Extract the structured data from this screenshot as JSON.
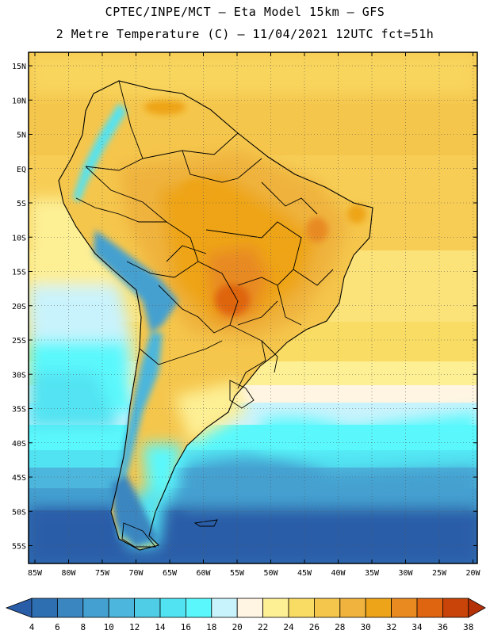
{
  "header": {
    "line1": "CPTEC/INPE/MCT –  Eta Model 15km – GFS",
    "line2": "2 Metre Temperature (C) – 11/04/2021 12UTC fct=51h"
  },
  "map": {
    "lat_labels": [
      "15N",
      "10N",
      "5N",
      "EQ",
      "5S",
      "10S",
      "15S",
      "20S",
      "25S",
      "30S",
      "35S",
      "40S",
      "45S",
      "50S",
      "55S"
    ],
    "lon_labels": [
      "85W",
      "80W",
      "75W",
      "70W",
      "65W",
      "60W",
      "55W",
      "50W",
      "45W",
      "40W",
      "35W",
      "30W",
      "25W",
      "20W"
    ],
    "lat_values": [
      15,
      10,
      5,
      0,
      -5,
      -10,
      -15,
      -20,
      -25,
      -30,
      -35,
      -40,
      -45,
      -50,
      -55
    ],
    "lon_values": [
      -85,
      -80,
      -75,
      -70,
      -65,
      -60,
      -55,
      -50,
      -45,
      -40,
      -35,
      -30,
      -25,
      -20
    ]
  },
  "colorbar": {
    "labels": [
      "4",
      "6",
      "8",
      "10",
      "12",
      "14",
      "16",
      "18",
      "20",
      "22",
      "24",
      "26",
      "28",
      "30",
      "32",
      "34",
      "36",
      "38"
    ],
    "colors": [
      "#2a5da8",
      "#2e6fb2",
      "#3a86c0",
      "#44a0d0",
      "#4cb6dc",
      "#50cde6",
      "#52e3f2",
      "#5af8fc",
      "#c9f3fc",
      "#fff5e2",
      "#fdef94",
      "#f9dc64",
      "#f5c64c",
      "#efb33e",
      "#eea418",
      "#e88a20",
      "#df6510",
      "#c94408",
      "#b53108"
    ]
  }
}
